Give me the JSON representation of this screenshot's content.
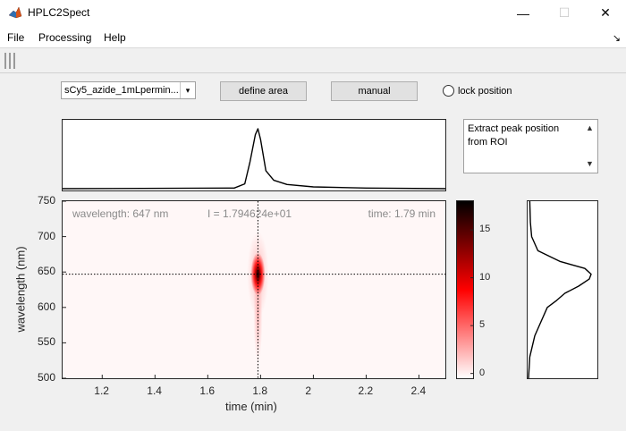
{
  "window": {
    "title": "HPLC2Spect",
    "minimize_glyph": "—",
    "maximize_glyph": "☐",
    "close_glyph": "✕"
  },
  "menu": {
    "items": [
      "File",
      "Processing",
      "Help"
    ],
    "dock_glyph": "↘"
  },
  "controls": {
    "dataset_select": "sCy5_azide_1mLpermin...",
    "dropdown_glyph": "▾",
    "define_area_label": "define area",
    "manual_label": "manual",
    "lock_position_label": "lock position",
    "lock_position_checked": false,
    "info_text": "Extract peak position from ROI",
    "scroll_up_glyph": "▲",
    "scroll_down_glyph": "▼"
  },
  "readouts": {
    "wavelength": "wavelength: 647 nm",
    "intensity": "I = 1.794624e+01",
    "time": "time: 1.79 min"
  },
  "colors": {
    "heat_max": "#000000",
    "heat_mid": "#ff0000",
    "heat_min": "#ffffff"
  },
  "chart_data": [
    {
      "type": "heatmap",
      "xlabel": "time (min)",
      "ylabel": "wavelength (nm)",
      "xlim": [
        1.05,
        2.5
      ],
      "ylim": [
        500,
        750
      ],
      "xticks": [
        1.2,
        1.4,
        1.6,
        1.8,
        2,
        2.2,
        2.4
      ],
      "xtick_labels": [
        "1.2",
        "1.4",
        "1.6",
        "1.8",
        "2",
        "2.2",
        "2.4"
      ],
      "yticks": [
        500,
        550,
        600,
        650,
        700,
        750
      ],
      "ytick_labels": [
        "500",
        "550",
        "600",
        "650",
        "700",
        "750"
      ],
      "peak": {
        "time": 1.79,
        "wavelength": 647,
        "intensity": 17.94624
      },
      "crosshair": {
        "time": 1.79,
        "wavelength": 647
      }
    },
    {
      "type": "line",
      "name": "chromatogram",
      "x": [
        1.05,
        1.7,
        1.74,
        1.76,
        1.78,
        1.79,
        1.8,
        1.82,
        1.85,
        1.9,
        2.0,
        2.2,
        2.5
      ],
      "values": [
        0.0,
        0.01,
        0.08,
        0.45,
        0.9,
        1.0,
        0.82,
        0.3,
        0.14,
        0.07,
        0.03,
        0.01,
        0.0
      ],
      "xlim": [
        1.05,
        2.5
      ]
    },
    {
      "type": "line",
      "name": "colorbar",
      "ylim": [
        -0.5,
        18
      ],
      "yticks": [
        0,
        5,
        10,
        15
      ],
      "ytick_labels": [
        "0",
        "5",
        "10",
        "15"
      ]
    },
    {
      "type": "line",
      "name": "spectrum",
      "wavelength": [
        500,
        530,
        560,
        580,
        600,
        610,
        620,
        630,
        640,
        647,
        655,
        665,
        680,
        700,
        720,
        750
      ],
      "values": [
        0.0,
        0.02,
        0.1,
        0.2,
        0.3,
        0.45,
        0.58,
        0.8,
        0.97,
        1.0,
        0.9,
        0.5,
        0.15,
        0.05,
        0.03,
        0.02
      ],
      "ylim": [
        500,
        750
      ]
    }
  ]
}
